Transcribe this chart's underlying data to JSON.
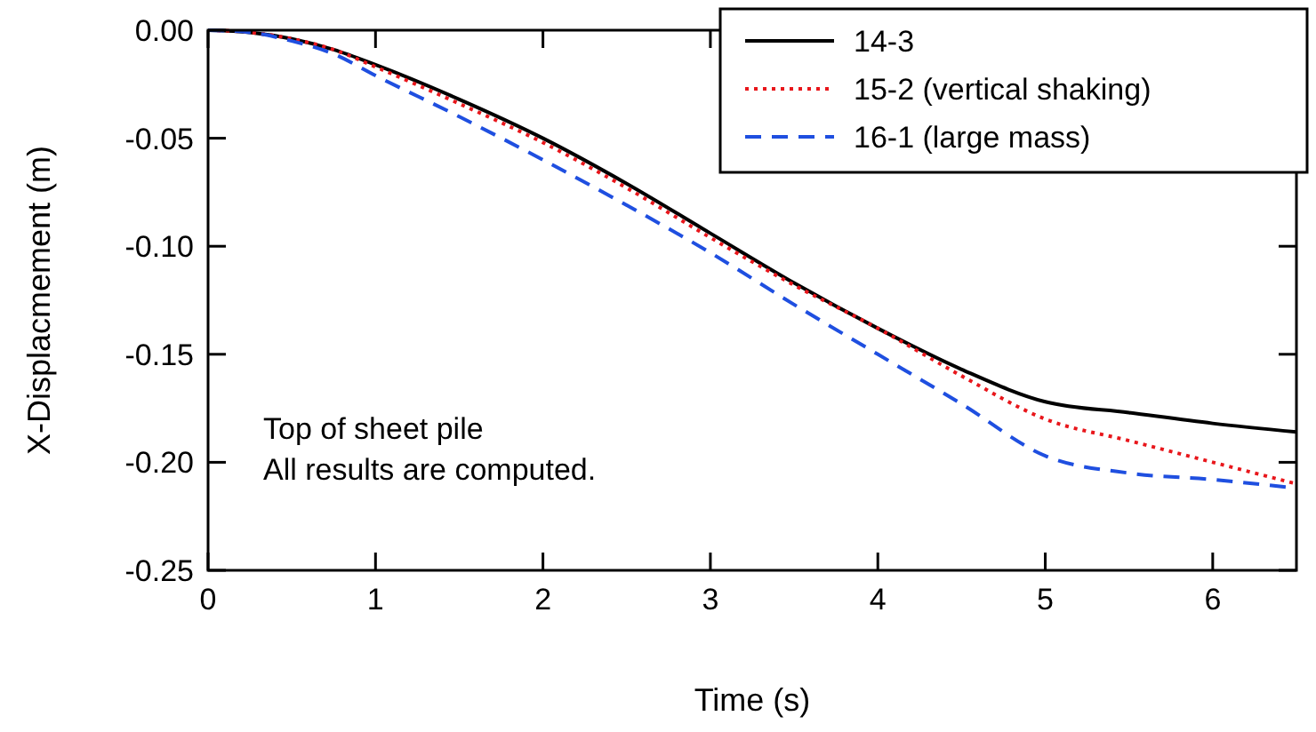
{
  "chart_data": {
    "type": "line",
    "xlabel": "Time (s)",
    "ylabel": "X-Displacmement (m)",
    "x": [
      0,
      0.25,
      0.5,
      0.75,
      1,
      1.5,
      2,
      2.5,
      3,
      3.5,
      4,
      4.5,
      5,
      5.5,
      6,
      6.5
    ],
    "series": [
      {
        "name": "14-3",
        "color": "#000000",
        "line_style": "solid",
        "values": [
          0,
          -0.001,
          -0.004,
          -0.009,
          -0.016,
          -0.032,
          -0.05,
          -0.071,
          -0.094,
          -0.117,
          -0.138,
          -0.157,
          -0.172,
          -0.177,
          -0.182,
          -0.186
        ]
      },
      {
        "name": "15-2 (vertical shaking)",
        "color": "#e8161b",
        "line_style": "dotted",
        "values": [
          0,
          -0.001,
          -0.004,
          -0.009,
          -0.017,
          -0.034,
          -0.052,
          -0.073,
          -0.096,
          -0.118,
          -0.138,
          -0.16,
          -0.18,
          -0.19,
          -0.2,
          -0.21
        ]
      },
      {
        "name": "16-1 (large mass)",
        "color": "#1f4fe0",
        "line_style": "dashed",
        "values": [
          0,
          -0.001,
          -0.005,
          -0.011,
          -0.021,
          -0.04,
          -0.06,
          -0.081,
          -0.103,
          -0.127,
          -0.15,
          -0.173,
          -0.197,
          -0.205,
          -0.208,
          -0.212
        ]
      }
    ],
    "xlim": [
      0,
      6.5
    ],
    "xticks": [
      0,
      1,
      2,
      3,
      4,
      5,
      6
    ],
    "ylim": [
      -0.25,
      0
    ],
    "yticks": [
      {
        "value": -0.25,
        "label": "-0.25"
      },
      {
        "value": -0.2,
        "label": "-0.20"
      },
      {
        "value": -0.15,
        "label": "-0.15"
      },
      {
        "value": -0.1,
        "label": "-0.10"
      },
      {
        "value": -0.05,
        "label": "-0.05"
      },
      {
        "value": 0,
        "label": "0.00"
      }
    ],
    "legend": "top right",
    "grid": false,
    "annotations": [
      "Top of sheet pile",
      "All results are computed."
    ]
  }
}
